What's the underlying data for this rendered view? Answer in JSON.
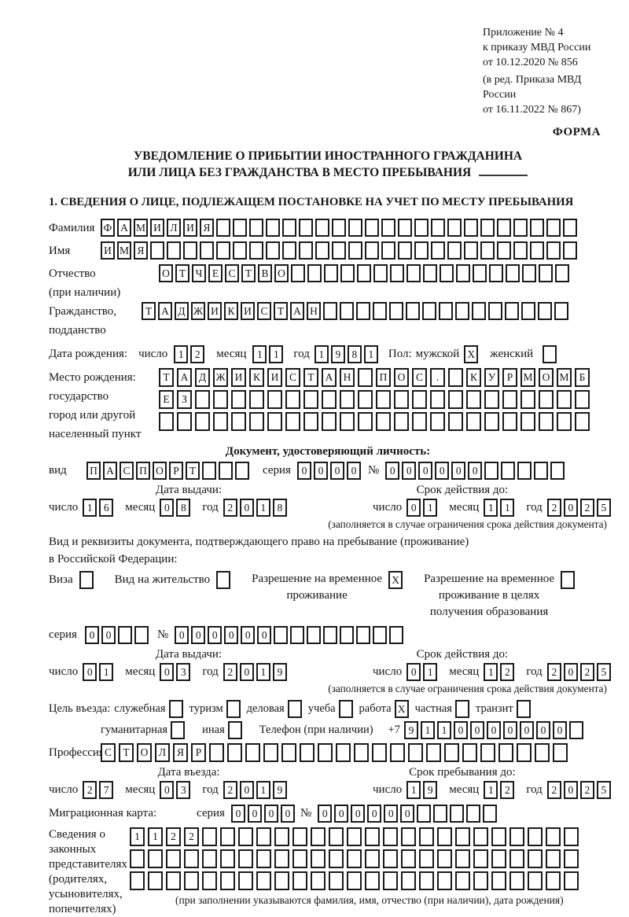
{
  "ink": "#161616",
  "header": {
    "ref_lines": [
      "Приложение № 4",
      "к приказу МВД России",
      "от 10.12.2020 № 856"
    ],
    "amend_lines": [
      "(в ред. Приказа МВД России",
      "от 16.11.2022 № 867)"
    ],
    "form_label": "ФОРМА"
  },
  "title": {
    "line1": "УВЕДОМЛЕНИЕ О ПРИБЫТИИ ИНОСТРАННОГО ГРАЖДАНИНА",
    "line2": "ИЛИ ЛИЦА БЕЗ ГРАЖДАНСТВА В МЕСТО ПРЕБЫВАНИЯ"
  },
  "section1_heading": "1. СВЕДЕНИЯ О ЛИЦЕ, ПОДЛЕЖАЩЕМ ПОСТАНОВКЕ НА УЧЕТ ПО МЕСТУ ПРЕБЫВАНИЯ",
  "labels": {
    "surname": "Фамилия",
    "given_name": "Имя",
    "patronymic_l1": "Отчество",
    "patronymic_l2": "(при наличии)",
    "citizenship_l1": "Гражданство,",
    "citizenship_l2": "подданство",
    "birth_date": "Дата рождения:",
    "day": "число",
    "month": "месяц",
    "year": "год",
    "sex": "Пол:",
    "male": "мужской",
    "female": "женский",
    "birth_place_l1": "Место рождения:",
    "birth_place_l2": "государство",
    "birth_place_l3": "город или другой",
    "birth_place_l4": "населенный пункт",
    "id_doc_heading": "Документ, удостоверяющий личность:",
    "doc_kind": "вид",
    "series": "серия",
    "number_sign": "№",
    "issue_date": "Дата выдачи:",
    "valid_until": "Срок действия до:",
    "validity_note": "(заполняется в случае ограничения срока действия документа)",
    "residence_doc_l1": "Вид и реквизиты документа, подтверждающего право на пребывание (проживание)",
    "residence_doc_l2": "в Российской Федерации:",
    "visa": "Виза",
    "residence_permit": "Вид на жительство",
    "temp_residence_l1": "Разрешение на временное",
    "temp_residence_l2": "проживание",
    "temp_residence_edu_l1": "Разрешение на временное",
    "temp_residence_edu_l2": "проживание в целях",
    "temp_residence_edu_l3": "получения образования",
    "entry_purpose": "Цель въезда:",
    "purpose_official": "служебная",
    "purpose_tourism": "туризм",
    "purpose_business": "деловая",
    "purpose_study": "учеба",
    "purpose_work": "работа",
    "purpose_private": "частная",
    "purpose_transit": "транзит",
    "purpose_humanitarian": "гуманитарная",
    "purpose_other": "иная",
    "phone": "Телефон (при наличии)",
    "phone_prefix": "+7",
    "profession": "Профессия",
    "entry_date": "Дата въезда:",
    "stay_until": "Срок пребывания до:",
    "migration_card": "Миграционная карта:",
    "reps_l1": "Сведения о",
    "reps_l2": "законных",
    "reps_l3": "представителях",
    "reps_l4": "(родителях,",
    "reps_l5": "усыновителях,",
    "reps_l6": "попечителях)",
    "reps_note": "(при заполнении указываются фамилия, имя, отчество (при наличии), дата рождения)"
  },
  "cells": {
    "surname": {
      "count": 29,
      "value": "ФАМИЛИЯ"
    },
    "name": {
      "count": 29,
      "value": "ИМЯ"
    },
    "patronymic": {
      "count": 25,
      "value": "ОТЧЕСТВО"
    },
    "citizenship": {
      "count": 26,
      "value": "ТАДЖИКИСТАН"
    },
    "birth_day": {
      "count": 2,
      "value": "12"
    },
    "birth_month": {
      "count": 2,
      "value": "11"
    },
    "birth_year": {
      "count": 4,
      "value": "1981"
    },
    "sex_male": {
      "count": 1,
      "value": "X"
    },
    "sex_female": {
      "count": 1,
      "value": ""
    },
    "birth_place_row1": {
      "count": 24,
      "value": "ТАДЖИКИСТАН ПОС. КУРМОМБ"
    },
    "birth_place_row2": {
      "count": 24,
      "value": "ЕЗ"
    },
    "birth_place_row3": {
      "count": 24,
      "value": ""
    },
    "id_doc_type": {
      "count": 10,
      "value": "ПАСПОРТ"
    },
    "id_doc_series": {
      "count": 4,
      "value": "0000"
    },
    "id_doc_number": {
      "count": 11,
      "value": "000000"
    },
    "id_issue_day": {
      "count": 2,
      "value": "16"
    },
    "id_issue_month": {
      "count": 2,
      "value": "08"
    },
    "id_issue_year": {
      "count": 4,
      "value": "2018"
    },
    "id_valid_day": {
      "count": 2,
      "value": "01"
    },
    "id_valid_month": {
      "count": 2,
      "value": "11"
    },
    "id_valid_year": {
      "count": 4,
      "value": "2025"
    },
    "visa_box": {
      "count": 1,
      "value": ""
    },
    "residence_permit_box": {
      "count": 1,
      "value": ""
    },
    "temp_residence_box": {
      "count": 1,
      "value": "X"
    },
    "temp_residence_edu_box": {
      "count": 1,
      "value": ""
    },
    "res_series": {
      "count": 4,
      "value": "00"
    },
    "res_number": {
      "count": 14,
      "value": "000000"
    },
    "res_issue_day": {
      "count": 2,
      "value": "01"
    },
    "res_issue_month": {
      "count": 2,
      "value": "03"
    },
    "res_issue_year": {
      "count": 4,
      "value": "2019"
    },
    "res_valid_day": {
      "count": 2,
      "value": "01"
    },
    "res_valid_month": {
      "count": 2,
      "value": "12"
    },
    "res_valid_year": {
      "count": 4,
      "value": "2025"
    },
    "box_official": {
      "count": 1,
      "value": ""
    },
    "box_tourism": {
      "count": 1,
      "value": ""
    },
    "box_business": {
      "count": 1,
      "value": ""
    },
    "box_study": {
      "count": 1,
      "value": ""
    },
    "box_work": {
      "count": 1,
      "value": "X"
    },
    "box_private": {
      "count": 1,
      "value": ""
    },
    "box_transit": {
      "count": 1,
      "value": ""
    },
    "box_humanitarian": {
      "count": 1,
      "value": ""
    },
    "box_other": {
      "count": 1,
      "value": ""
    },
    "phone_digits": {
      "count": 11,
      "value": "9110000000"
    },
    "profession": {
      "count": 26,
      "value": "СТОЛЯР"
    },
    "entry_day": {
      "count": 2,
      "value": "27"
    },
    "entry_month": {
      "count": 2,
      "value": "03"
    },
    "entry_year": {
      "count": 4,
      "value": "2019"
    },
    "stay_day": {
      "count": 2,
      "value": "19"
    },
    "stay_month": {
      "count": 2,
      "value": "12"
    },
    "stay_year": {
      "count": 4,
      "value": "2025"
    },
    "mig_series": {
      "count": 4,
      "value": "0000"
    },
    "mig_number": {
      "count": 11,
      "value": "000000"
    },
    "reps_row1": {
      "count": 25,
      "value": "1122"
    },
    "reps_row2": {
      "count": 25,
      "value": ""
    },
    "reps_row3": {
      "count": 25,
      "value": ""
    }
  }
}
